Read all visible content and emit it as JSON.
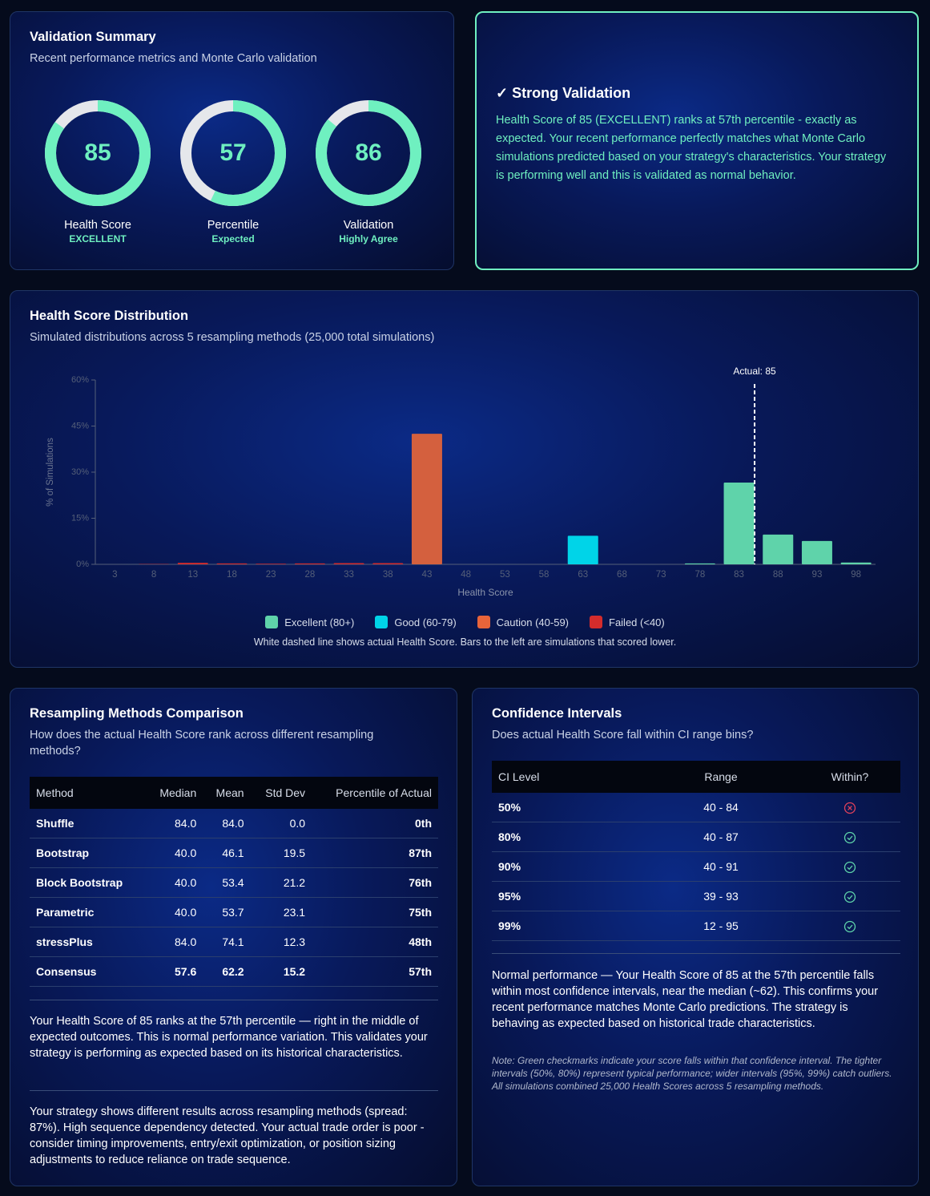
{
  "validation_summary": {
    "title": "Validation Summary",
    "subtitle": "Recent performance metrics and Monte Carlo validation",
    "gauges": [
      {
        "value": 85,
        "label": "Health Score",
        "status": "EXCELLENT"
      },
      {
        "value": 57,
        "label": "Percentile",
        "status": "Expected"
      },
      {
        "value": 86,
        "label": "Validation",
        "status": "Highly Agree"
      }
    ]
  },
  "validation_message": {
    "title": "✓ Strong Validation",
    "text": "Health Score of 85 (EXCELLENT) ranks at 57th percentile - exactly as expected. Your recent performance perfectly matches what Monte Carlo simulations predicted based on your strategy's characteristics. Your strategy is performing well and this is validated as normal behavior."
  },
  "chart_data": {
    "type": "bar",
    "title": "Health Score Distribution",
    "subtitle": "Simulated distributions across 5 resampling methods (25,000 total simulations)",
    "x_label": "Health Score",
    "y_label": "% of Simulations",
    "categories": [
      "3",
      "8",
      "13",
      "18",
      "23",
      "28",
      "33",
      "38",
      "43",
      "48",
      "53",
      "58",
      "63",
      "68",
      "73",
      "78",
      "83",
      "88",
      "93",
      "98"
    ],
    "values": [
      0,
      0.1,
      0.5,
      0.3,
      0.2,
      0.3,
      0.4,
      0.4,
      42.5,
      0,
      0,
      0,
      9.3,
      0,
      0,
      0.3,
      26.6,
      9.7,
      7.6,
      0.6
    ],
    "colors": [
      "#d42c2c",
      "#d42c2c",
      "#d42c2c",
      "#d42c2c",
      "#d42c2c",
      "#d42c2c",
      "#d42c2c",
      "#d42c2c",
      "#d4603e",
      "#d4603e",
      "#d4603e",
      "#d4603e",
      "#00d4e8",
      "#00d4e8",
      "#00d4e8",
      "#5fd3aa",
      "#5fd3aa",
      "#5fd3aa",
      "#5fd3aa",
      "#5fd3aa"
    ],
    "ylim": [
      0,
      60
    ],
    "yticks": [
      {
        "value": 0,
        "label": "0%"
      },
      {
        "value": 15,
        "label": "15%"
      },
      {
        "value": 30,
        "label": "30%"
      },
      {
        "value": 45,
        "label": "45%"
      },
      {
        "value": 60,
        "label": "60%"
      }
    ],
    "annotation": {
      "value": 85,
      "label": "Actual: 85"
    },
    "legend": [
      {
        "name": "Excellent (80+)",
        "color": "#5fd3aa"
      },
      {
        "name": "Good (60-79)",
        "color": "#00d4e8"
      },
      {
        "name": "Caution (40-59)",
        "color": "#e8643a"
      },
      {
        "name": "Failed (<40)",
        "color": "#d42c2c"
      }
    ],
    "note": "White dashed line shows actual Health Score. Bars to the left are simulations that scored lower."
  },
  "resampling": {
    "title": "Resampling Methods Comparison",
    "subtitle": "How does the actual Health Score rank across different resampling methods?",
    "columns": [
      "Method",
      "Median",
      "Mean",
      "Std Dev",
      "Percentile of Actual"
    ],
    "rows": [
      [
        "Shuffle",
        "84.0",
        "84.0",
        "0.0",
        "0th"
      ],
      [
        "Bootstrap",
        "40.0",
        "46.1",
        "19.5",
        "87th"
      ],
      [
        "Block Bootstrap",
        "40.0",
        "53.4",
        "21.2",
        "76th"
      ],
      [
        "Parametric",
        "40.0",
        "53.7",
        "23.1",
        "75th"
      ],
      [
        "stressPlus",
        "84.0",
        "74.1",
        "12.3",
        "48th"
      ],
      [
        "Consensus",
        "57.6",
        "62.2",
        "15.2",
        "57th"
      ]
    ],
    "notes": [
      "Your Health Score of 85 ranks at the 57th percentile — right in the middle of expected outcomes. This is normal performance variation. This validates your strategy is performing as expected based on its historical characteristics.",
      "Your strategy shows different results across resampling methods (spread: 87%). High sequence dependency detected. Your actual trade order is poor - consider timing improvements, entry/exit optimization, or position sizing adjustments to reduce reliance on trade sequence."
    ]
  },
  "confidence": {
    "title": "Confidence Intervals",
    "subtitle": "Does actual Health Score fall within CI range bins?",
    "columns": [
      "CI Level",
      "Range",
      "Within?"
    ],
    "rows": [
      {
        "level": "50%",
        "range": "40 - 84",
        "within": false
      },
      {
        "level": "80%",
        "range": "40 - 87",
        "within": true
      },
      {
        "level": "90%",
        "range": "40 - 91",
        "within": true
      },
      {
        "level": "95%",
        "range": "39 - 93",
        "within": true
      },
      {
        "level": "99%",
        "range": "12 - 95",
        "within": true
      }
    ],
    "summary": "Normal performance — Your Health Score of 85 at the 57th percentile falls within most confidence intervals, near the median (~62). This confirms your recent performance matches Monte Carlo predictions. The strategy is behaving as expected based on historical trade characteristics.",
    "note": "Note: Green checkmarks indicate your score falls within that confidence interval. The tighter intervals (50%, 80%) represent typical performance; wider intervals (95%, 99%) catch outliers. All simulations combined 25,000 Health Scores across 5 resampling methods."
  }
}
